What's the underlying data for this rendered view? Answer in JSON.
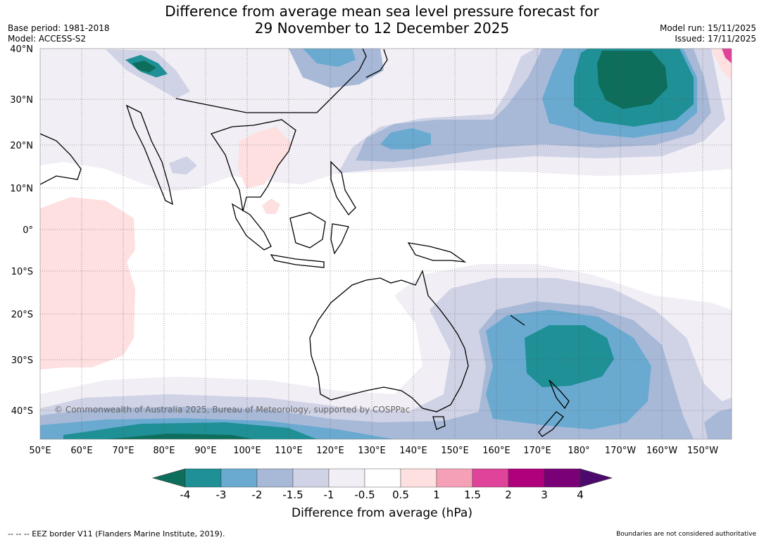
{
  "title_line1": "Difference from average mean sea level pressure forecast for",
  "title_line2": "29 November to 12 December 2025",
  "base_period": "Base period: 1981-2018",
  "model": "Model: ACCESS-S2",
  "model_run": "Model run: 15/11/2025",
  "issued": "Issued: 17/11/2025",
  "lat_labels": [
    "40°N",
    "30°N",
    "20°N",
    "10°N",
    "0°",
    "10°S",
    "20°S",
    "30°S",
    "40°S"
  ],
  "lon_labels": [
    "50°E",
    "60°E",
    "70°E",
    "80°E",
    "90°E",
    "100°E",
    "110°E",
    "120°E",
    "130°E",
    "140°E",
    "150°E",
    "160°E",
    "170°E",
    "180°",
    "170°W",
    "160°W",
    "150°W"
  ],
  "copyright": "© Commonwealth of Australia 2025, Bureau of Meteorology, supported by COSPPac",
  "colorbar": {
    "labels": [
      "-4",
      "-3",
      "-2",
      "-1.5",
      "-1",
      "-0.5",
      "0.5",
      "1",
      "1.5",
      "2",
      "3",
      "4"
    ],
    "colors": [
      "#0e6e5c",
      "#1e9096",
      "#6aaad0",
      "#a8b9d8",
      "#d0d3e6",
      "#f1eef5",
      "#ffffff",
      "#fde0df",
      "#f6a0b8",
      "#e0449a",
      "#b0007b",
      "#7a0077",
      "#4d0a6e"
    ],
    "title": "Difference from average (hPa)"
  },
  "footer_left": "--  --  -- EEZ border V11 (Flanders Marine Institute, 2019).",
  "footer_right": "Boundaries are not considered authoritative"
}
